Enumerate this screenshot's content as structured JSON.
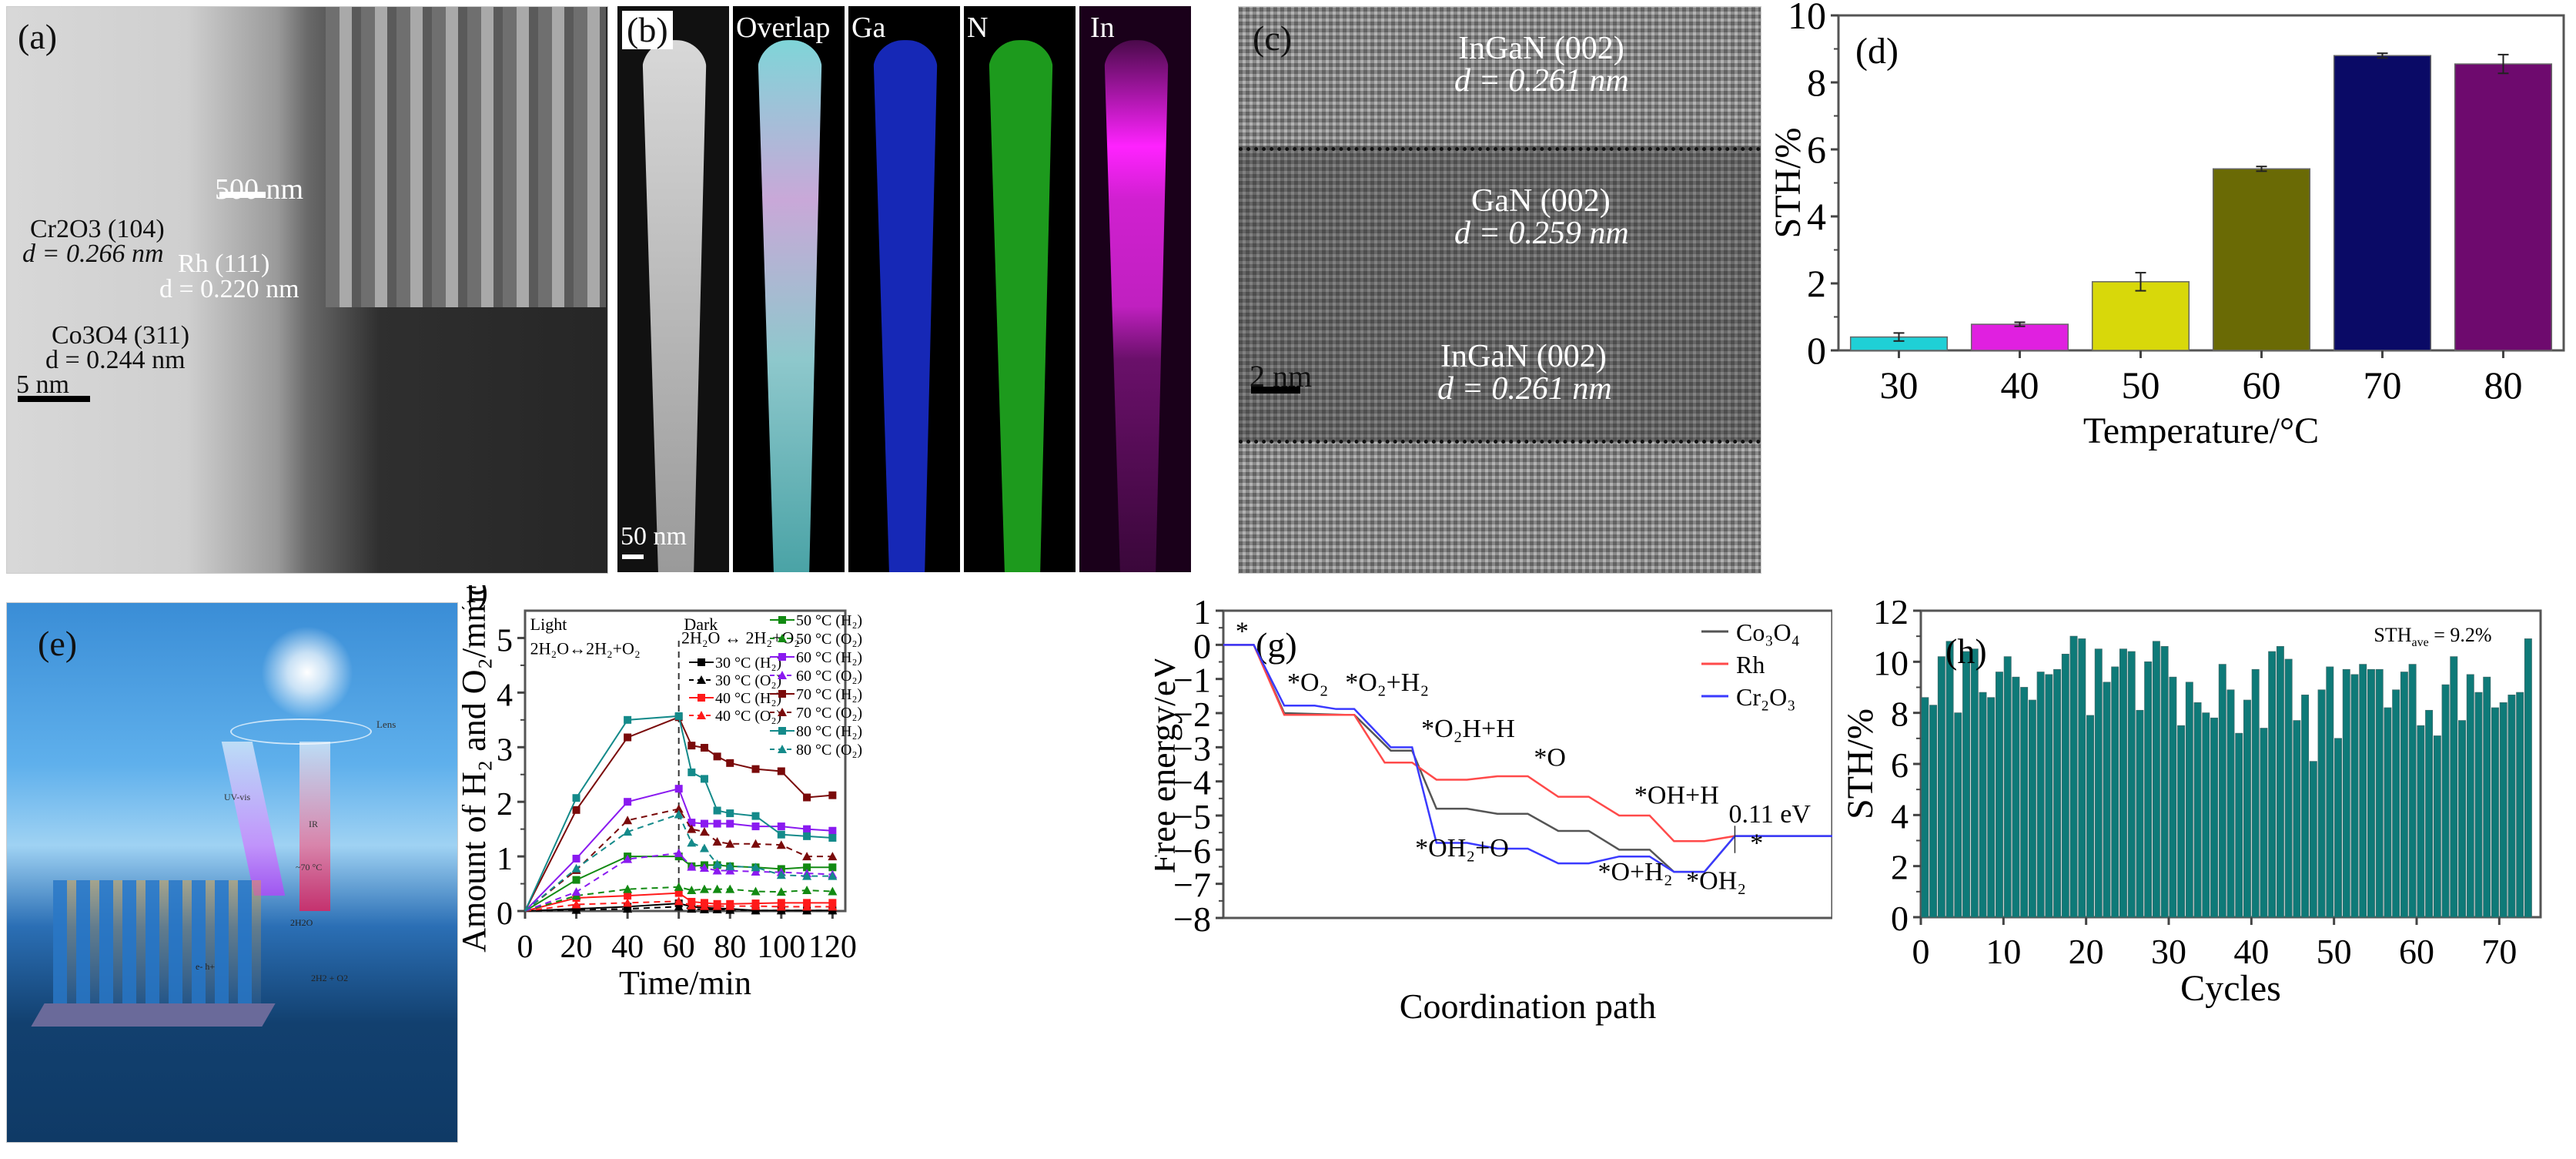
{
  "figure": {
    "panels": [
      "(a)",
      "(b)",
      "(c)",
      "(d)",
      "(e)",
      "(f)",
      "(g)",
      "(h)"
    ]
  },
  "panel_a": {
    "label": "(a)",
    "inset_scale": "500 nm",
    "scale": "5 nm",
    "annotations": [
      {
        "name": "Cr2O3 (104)",
        "d": "d = 0.266 nm"
      },
      {
        "name": "Rh (111)",
        "d": "d = 0.220 nm"
      },
      {
        "name": "Co3O4 (311)",
        "d": "d = 0.244 nm"
      }
    ]
  },
  "panel_b": {
    "label": "(b)",
    "scale": "50 nm",
    "maps": [
      "",
      "Overlap",
      "Ga",
      "N",
      "In"
    ],
    "colors": {
      "Ga": "#1a2fd6",
      "N": "#22b522",
      "In": "#e020e0"
    }
  },
  "panel_c": {
    "label": "(c)",
    "scale": "2 nm",
    "annotations": [
      {
        "name": "InGaN (002)",
        "d": "d = 0.261 nm"
      },
      {
        "name": "GaN (002)",
        "d": "d = 0.259 nm"
      },
      {
        "name": "InGaN (002)",
        "d": "d = 0.261 nm"
      }
    ]
  },
  "panel_e": {
    "label": "(e)",
    "texts": [
      "Lens",
      "UV-vis",
      "IR",
      "~70 °C",
      "2H2O",
      "e- h+",
      "2H2 + O2"
    ]
  },
  "chart_data": [
    {
      "id": "d",
      "type": "bar",
      "title": "(d)",
      "xlabel": "Temperature/°C",
      "ylabel": "STH/%",
      "categories": [
        "30",
        "40",
        "50",
        "60",
        "70",
        "80"
      ],
      "values": [
        0.4,
        0.78,
        2.05,
        5.42,
        8.8,
        8.55
      ],
      "errors": [
        0.12,
        0.06,
        0.27,
        0.07,
        0.07,
        0.28
      ],
      "colors": [
        "#1fd0d6",
        "#e020e0",
        "#d8d80a",
        "#6a6a05",
        "#0a0a66",
        "#6e0a6e"
      ],
      "ylim": [
        0,
        10
      ],
      "yticks": [
        0,
        2,
        4,
        6,
        8,
        10
      ]
    },
    {
      "id": "f",
      "type": "line",
      "title": "(f)",
      "xlabel": "Time/min",
      "ylabel": "Amount of H2 and O2/mmol",
      "xlim": [
        0,
        125
      ],
      "ylim": [
        0,
        5.5
      ],
      "xticks": [
        0,
        20,
        40,
        60,
        80,
        100,
        120
      ],
      "yticks": [
        0,
        1,
        2,
        3,
        4,
        5
      ],
      "annotations": [
        {
          "text": "Light",
          "x": 2,
          "y": 5.15
        },
        {
          "text": "2H2O↔2H2+O2",
          "x": 2,
          "y": 4.7
        },
        {
          "text": "Dark",
          "x": 62,
          "y": 5.15
        },
        {
          "text": "2H2O ↔ 2H2+O2",
          "x": 61,
          "y": 4.9
        }
      ],
      "divider_x": 60,
      "x": [
        0,
        20,
        40,
        60,
        65,
        70,
        75,
        80,
        90,
        100,
        110,
        120
      ],
      "series": [
        {
          "name": "30 °C (H2)",
          "color": "#000000",
          "dash": false,
          "marker": "square",
          "values": [
            0,
            0.04,
            0.08,
            0.14,
            0.08,
            0.06,
            0.05,
            0.04,
            0.01,
            0.01,
            0.01,
            0.01
          ]
        },
        {
          "name": "30 °C (O2)",
          "color": "#000000",
          "dash": true,
          "marker": "triangle",
          "values": [
            0,
            0.02,
            0.04,
            0.08,
            0.04,
            0.03,
            0.03,
            0.02,
            0.01,
            0.01,
            0.01,
            0.01
          ]
        },
        {
          "name": "40 °C (H2)",
          "color": "#ff1a1a",
          "dash": false,
          "marker": "square",
          "values": [
            0,
            0.24,
            0.28,
            0.33,
            0.17,
            0.15,
            0.13,
            0.13,
            0.14,
            0.15,
            0.15,
            0.15
          ]
        },
        {
          "name": "40 °C (O2)",
          "color": "#ff1a1a",
          "dash": true,
          "marker": "triangle",
          "values": [
            0,
            0.12,
            0.15,
            0.18,
            0.1,
            0.09,
            0.09,
            0.09,
            0.09,
            0.08,
            0.08,
            0.08
          ]
        },
        {
          "name": "50 °C (H2)",
          "color": "#128a12",
          "dash": false,
          "marker": "square",
          "values": [
            0,
            0.57,
            1.0,
            1.0,
            0.82,
            0.84,
            0.84,
            0.82,
            0.8,
            0.77,
            0.8,
            0.8
          ]
        },
        {
          "name": "50 °C (O2)",
          "color": "#128a12",
          "dash": true,
          "marker": "triangle",
          "values": [
            0,
            0.28,
            0.4,
            0.44,
            0.38,
            0.4,
            0.4,
            0.4,
            0.36,
            0.35,
            0.38,
            0.36
          ]
        },
        {
          "name": "60 °C (H2)",
          "color": "#8a1af0",
          "dash": false,
          "marker": "square",
          "values": [
            0,
            0.96,
            2.0,
            2.24,
            1.62,
            1.6,
            1.6,
            1.6,
            1.55,
            1.55,
            1.5,
            1.47
          ]
        },
        {
          "name": "60 °C (O2)",
          "color": "#8a1af0",
          "dash": true,
          "marker": "triangle",
          "values": [
            0,
            0.35,
            0.95,
            1.06,
            0.81,
            0.79,
            0.74,
            0.74,
            0.72,
            0.71,
            0.69,
            0.67
          ]
        },
        {
          "name": "70 °C (H2)",
          "color": "#7a0a0a",
          "dash": false,
          "marker": "square",
          "values": [
            0,
            1.85,
            3.18,
            3.55,
            3.03,
            2.99,
            2.83,
            2.71,
            2.6,
            2.56,
            2.08,
            2.12
          ]
        },
        {
          "name": "70 °C (O2)",
          "color": "#7a0a0a",
          "dash": true,
          "marker": "triangle",
          "values": [
            0,
            0.75,
            1.66,
            1.87,
            1.5,
            1.45,
            1.27,
            1.23,
            1.23,
            1.21,
            1.0,
            1.0
          ]
        },
        {
          "name": "80 °C (H2)",
          "color": "#148a8a",
          "dash": false,
          "marker": "square",
          "values": [
            0,
            2.07,
            3.5,
            3.57,
            2.54,
            2.42,
            1.84,
            1.79,
            1.74,
            1.4,
            1.37,
            1.34
          ]
        },
        {
          "name": "80 °C (O2)",
          "color": "#148a8a",
          "dash": true,
          "marker": "triangle",
          "values": [
            0,
            0.78,
            1.45,
            1.77,
            1.25,
            1.15,
            0.86,
            0.82,
            0.8,
            0.66,
            0.64,
            0.64
          ]
        }
      ],
      "legend": "top-right"
    },
    {
      "id": "g",
      "type": "line",
      "title": "(g)",
      "xlabel": "Coordination path",
      "ylabel": "Free energy/eV",
      "ylim": [
        -8,
        1
      ],
      "yticks": [
        1,
        0,
        -1,
        -2,
        -3,
        -4,
        -5,
        -6,
        -7,
        -8
      ],
      "xlim": [
        0,
        20
      ],
      "series": [
        {
          "name": "Co3O4",
          "color": "#555555",
          "points": [
            [
              0,
              0
            ],
            [
              1,
              0
            ],
            [
              2,
              -2.0
            ],
            [
              4,
              -2.05
            ],
            [
              4.3,
              -2.05
            ],
            [
              5.5,
              -3.1
            ],
            [
              6.2,
              -3.1
            ],
            [
              7,
              -4.8
            ],
            [
              8,
              -4.8
            ],
            [
              9,
              -4.95
            ],
            [
              10,
              -4.95
            ],
            [
              11,
              -5.45
            ],
            [
              12,
              -5.45
            ],
            [
              13,
              -6.0
            ],
            [
              14,
              -6.0
            ],
            [
              14.8,
              -6.65
            ],
            [
              15.8,
              -6.65
            ],
            [
              16.8,
              -5.6
            ],
            [
              20,
              -5.6
            ]
          ]
        },
        {
          "name": "Rh",
          "color": "#ff4a4a",
          "points": [
            [
              0,
              0
            ],
            [
              1,
              0
            ],
            [
              2,
              -2.05
            ],
            [
              4.3,
              -2.05
            ],
            [
              5.3,
              -3.45
            ],
            [
              6.2,
              -3.45
            ],
            [
              7,
              -3.95
            ],
            [
              8,
              -3.95
            ],
            [
              9,
              -3.85
            ],
            [
              10,
              -3.85
            ],
            [
              11,
              -4.45
            ],
            [
              12,
              -4.45
            ],
            [
              13,
              -5.0
            ],
            [
              14,
              -5.0
            ],
            [
              14.8,
              -5.75
            ],
            [
              15.8,
              -5.75
            ],
            [
              16.8,
              -5.6
            ]
          ]
        },
        {
          "name": "Cr2O3",
          "color": "#3a3aff",
          "points": [
            [
              0,
              0
            ],
            [
              1,
              0
            ],
            [
              2,
              -1.78
            ],
            [
              3,
              -1.78
            ],
            [
              3.7,
              -1.88
            ],
            [
              4.3,
              -1.88
            ],
            [
              5.5,
              -3.0
            ],
            [
              6.2,
              -3.0
            ],
            [
              7,
              -5.8
            ],
            [
              8,
              -5.8
            ],
            [
              9,
              -5.97
            ],
            [
              10,
              -5.97
            ],
            [
              11,
              -6.4
            ],
            [
              12,
              -6.4
            ],
            [
              13,
              -6.2
            ],
            [
              14,
              -6.2
            ],
            [
              14.8,
              -6.65
            ],
            [
              15.8,
              -6.65
            ],
            [
              16.8,
              -5.6
            ],
            [
              20,
              -5.6
            ]
          ]
        }
      ],
      "annotations": [
        {
          "text": "*",
          "x": 0.4,
          "y": 0.15
        },
        {
          "text": "*O2",
          "x": 2.1,
          "y": -1.35
        },
        {
          "text": "*O2+H2",
          "x": 4.0,
          "y": -1.35
        },
        {
          "text": "*O2H+H",
          "x": 6.5,
          "y": -2.7
        },
        {
          "text": "*O",
          "x": 10.2,
          "y": -3.55
        },
        {
          "text": "*OH+H",
          "x": 13.5,
          "y": -4.65
        },
        {
          "text": "0.11 eV",
          "x": 16.6,
          "y": -5.2
        },
        {
          "text": "*OH2+O",
          "x": 6.3,
          "y": -6.2
        },
        {
          "text": "*O+H2",
          "x": 12.3,
          "y": -6.9
        },
        {
          "text": "*OH2",
          "x": 15.2,
          "y": -7.15
        },
        {
          "text": "*",
          "x": 17.3,
          "y": -6.05
        }
      ],
      "legend": "top-right"
    },
    {
      "id": "h",
      "type": "bar",
      "title": "(h)",
      "xlabel": "Cycles",
      "ylabel": "STH/%",
      "annotation": "STHave = 9.2%",
      "xlim": [
        0,
        75
      ],
      "ylim": [
        0,
        12
      ],
      "xticks": [
        0,
        10,
        20,
        30,
        40,
        50,
        60,
        70
      ],
      "yticks": [
        0,
        2,
        4,
        6,
        8,
        10,
        12
      ],
      "color": "#0e7a78",
      "values": [
        8.6,
        8.3,
        10.2,
        10.8,
        8.0,
        10.4,
        10.5,
        8.8,
        8.6,
        9.6,
        10.2,
        9.4,
        9.0,
        8.5,
        9.6,
        9.5,
        9.7,
        10.3,
        11.0,
        10.9,
        7.9,
        10.5,
        9.2,
        9.8,
        10.5,
        10.4,
        8.1,
        10.0,
        10.8,
        10.6,
        9.4,
        7.5,
        9.2,
        8.4,
        8.0,
        7.8,
        9.9,
        8.9,
        7.2,
        8.5,
        9.7,
        7.4,
        10.4,
        10.6,
        10.1,
        7.7,
        8.7,
        6.1,
        8.9,
        9.8,
        7.0,
        9.7,
        9.5,
        9.9,
        9.7,
        9.7,
        8.2,
        8.9,
        9.6,
        9.9,
        7.5,
        8.1,
        7.1,
        9.1,
        10.2,
        7.7,
        9.5,
        8.8,
        9.4,
        8.2,
        8.4,
        8.7,
        8.8,
        10.9
      ]
    }
  ]
}
